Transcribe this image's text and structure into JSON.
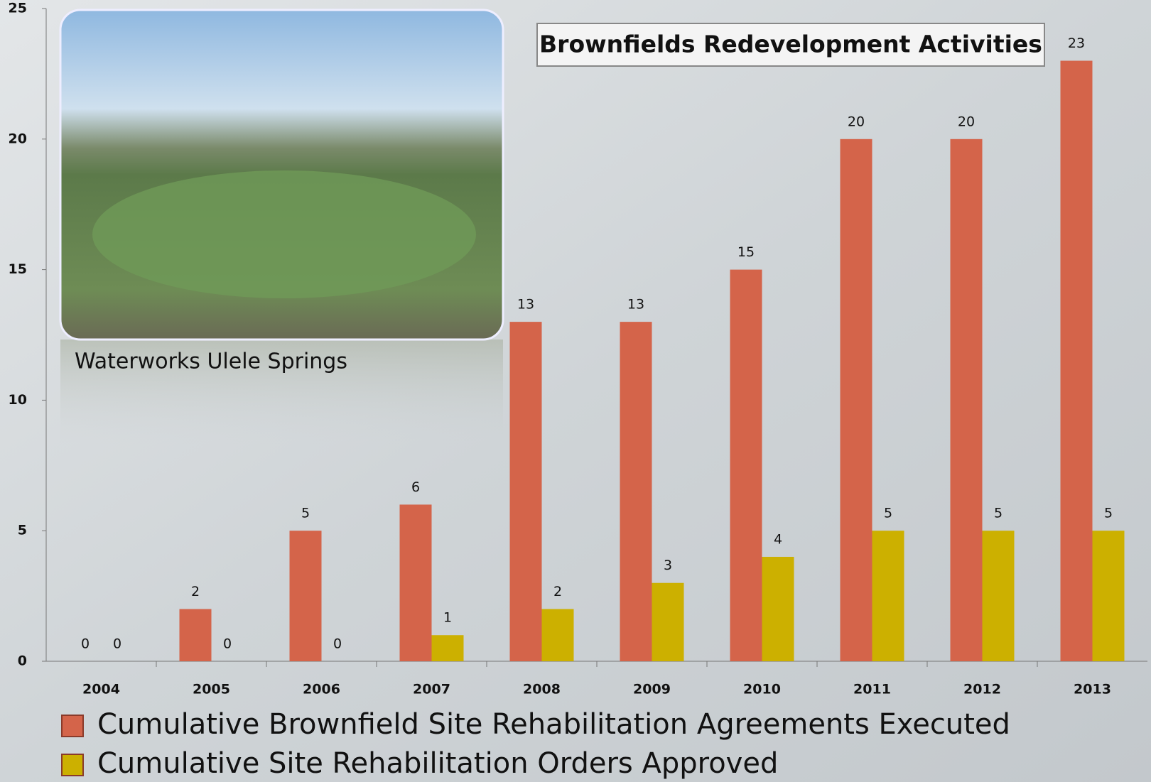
{
  "chart_data": {
    "type": "bar",
    "title": "Brownfields Redevelopment Activities",
    "image_caption": "Waterworks Ulele Springs",
    "categories": [
      "2004",
      "2005",
      "2006",
      "2007",
      "2008",
      "2009",
      "2010",
      "2011",
      "2012",
      "2013"
    ],
    "series": [
      {
        "name": "Cumulative Brownfield Site Rehabilitation Agreements Executed",
        "color": "#d4644a",
        "values": [
          0,
          2,
          5,
          6,
          13,
          13,
          15,
          20,
          20,
          23
        ]
      },
      {
        "name": "Cumulative Site Rehabilitation Orders Approved",
        "color": "#ccb000",
        "values": [
          0,
          0,
          0,
          1,
          2,
          3,
          4,
          5,
          5,
          5
        ]
      }
    ],
    "ylim": [
      0,
      25
    ],
    "yticks": [
      0,
      5,
      10,
      15,
      20,
      25
    ],
    "legend": "bottom-left"
  }
}
